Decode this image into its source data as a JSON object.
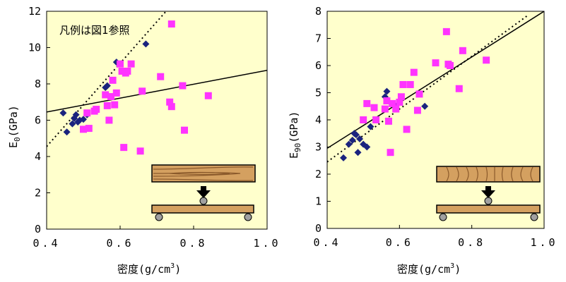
{
  "colors": {
    "plot_bg": "#ffffcc",
    "series_a": "#1a237e",
    "series_b": "#ff33ff",
    "wood": "#d4a060",
    "wood_dark": "#8b5a2b",
    "support": "#a0a0a0"
  },
  "chart_data": [
    {
      "type": "scatter",
      "xlabel": "密度(g/cm³)",
      "ylabel": "E0(GPa)",
      "ylabel_main": "E",
      "ylabel_sub": "0",
      "ylabel_rest": "(GPa)",
      "xlabel_main": "密度(g/cm",
      "xlabel_sup": "3",
      "xlabel_rest": ")",
      "annotation": "凡例は図1参照",
      "xlim": [
        0.4,
        1.0
      ],
      "ylim": [
        0,
        12
      ],
      "xticks": [
        "0.4",
        "0.6",
        "0.8",
        "1.0"
      ],
      "yticks": [
        "0",
        "2",
        "4",
        "6",
        "8",
        "10",
        "12"
      ],
      "ytick_values": [
        0,
        2,
        4,
        6,
        8,
        10,
        12
      ],
      "xtick_values": [
        0.4,
        0.6,
        0.8,
        1.0
      ],
      "series": [
        {
          "marker": "diamond",
          "color": "#1a237e",
          "points": [
            [
              0.445,
              6.4
            ],
            [
              0.455,
              5.35
            ],
            [
              0.47,
              5.8
            ],
            [
              0.475,
              6.1
            ],
            [
              0.48,
              6.3
            ],
            [
              0.485,
              5.9
            ],
            [
              0.49,
              6.0
            ],
            [
              0.5,
              6.05
            ],
            [
              0.51,
              6.3
            ],
            [
              0.56,
              7.8
            ],
            [
              0.565,
              7.9
            ],
            [
              0.59,
              9.2
            ],
            [
              0.67,
              10.2
            ]
          ]
        },
        {
          "marker": "square",
          "color": "#ff33ff",
          "points": [
            [
              0.5,
              5.5
            ],
            [
              0.51,
              6.4
            ],
            [
              0.515,
              5.55
            ],
            [
              0.53,
              6.5
            ],
            [
              0.535,
              6.6
            ],
            [
              0.56,
              7.4
            ],
            [
              0.565,
              6.8
            ],
            [
              0.57,
              6.0
            ],
            [
              0.575,
              7.3
            ],
            [
              0.58,
              8.2
            ],
            [
              0.585,
              6.85
            ],
            [
              0.59,
              7.5
            ],
            [
              0.6,
              9.1
            ],
            [
              0.605,
              8.7
            ],
            [
              0.61,
              4.5
            ],
            [
              0.615,
              8.6
            ],
            [
              0.62,
              8.7
            ],
            [
              0.63,
              9.1
            ],
            [
              0.655,
              4.3
            ],
            [
              0.66,
              7.6
            ],
            [
              0.71,
              8.4
            ],
            [
              0.735,
              7.0
            ],
            [
              0.74,
              6.75
            ],
            [
              0.74,
              11.3
            ],
            [
              0.77,
              7.9
            ],
            [
              0.775,
              5.45
            ],
            [
              0.84,
              7.35
            ]
          ]
        }
      ],
      "lines": [
        {
          "style": "solid",
          "x": [
            0.4,
            1.0
          ],
          "y": [
            6.45,
            8.75
          ]
        },
        {
          "style": "dotted",
          "x": [
            0.4,
            0.725
          ],
          "y": [
            4.55,
            12.0
          ]
        }
      ]
    },
    {
      "type": "scatter",
      "xlabel": "密度(g/cm³)",
      "ylabel": "E90(GPa)",
      "ylabel_main": "E",
      "ylabel_sub": "90",
      "ylabel_rest": "(GPa)",
      "xlabel_main": "密度(g/cm",
      "xlabel_sup": "3",
      "xlabel_rest": ")",
      "xlim": [
        0.4,
        1.0
      ],
      "ylim": [
        0,
        8
      ],
      "xticks": [
        "0.4",
        "0.6",
        "0.8",
        "1.0"
      ],
      "yticks": [
        "0",
        "1",
        "2",
        "3",
        "4",
        "5",
        "6",
        "7",
        "8"
      ],
      "ytick_values": [
        0,
        1,
        2,
        3,
        4,
        5,
        6,
        7,
        8
      ],
      "xtick_values": [
        0.4,
        0.6,
        0.8,
        1.0
      ],
      "series": [
        {
          "marker": "diamond",
          "color": "#1a237e",
          "points": [
            [
              0.445,
              2.6
            ],
            [
              0.46,
              3.1
            ],
            [
              0.47,
              3.25
            ],
            [
              0.475,
              3.5
            ],
            [
              0.48,
              3.45
            ],
            [
              0.485,
              2.8
            ],
            [
              0.49,
              3.3
            ],
            [
              0.5,
              3.1
            ],
            [
              0.51,
              3.0
            ],
            [
              0.52,
              3.75
            ],
            [
              0.56,
              4.85
            ],
            [
              0.565,
              5.05
            ],
            [
              0.59,
              4.5
            ],
            [
              0.67,
              4.5
            ]
          ]
        },
        {
          "marker": "square",
          "color": "#ff33ff",
          "points": [
            [
              0.5,
              4.0
            ],
            [
              0.51,
              4.6
            ],
            [
              0.53,
              4.45
            ],
            [
              0.535,
              4.0
            ],
            [
              0.56,
              4.4
            ],
            [
              0.565,
              4.7
            ],
            [
              0.57,
              3.95
            ],
            [
              0.575,
              2.8
            ],
            [
              0.58,
              4.6
            ],
            [
              0.59,
              4.4
            ],
            [
              0.6,
              4.65
            ],
            [
              0.605,
              4.85
            ],
            [
              0.61,
              5.3
            ],
            [
              0.62,
              3.65
            ],
            [
              0.63,
              5.3
            ],
            [
              0.64,
              5.75
            ],
            [
              0.65,
              4.35
            ],
            [
              0.655,
              4.95
            ],
            [
              0.7,
              6.1
            ],
            [
              0.73,
              7.25
            ],
            [
              0.735,
              6.05
            ],
            [
              0.74,
              6.0
            ],
            [
              0.765,
              5.15
            ],
            [
              0.775,
              6.55
            ],
            [
              0.84,
              6.2
            ]
          ]
        }
      ],
      "lines": [
        {
          "style": "solid",
          "x": [
            0.4,
            1.0
          ],
          "y": [
            2.95,
            8.0
          ]
        },
        {
          "style": "dotted",
          "x": [
            0.4,
            0.955
          ],
          "y": [
            2.45,
            7.85
          ]
        }
      ]
    }
  ]
}
